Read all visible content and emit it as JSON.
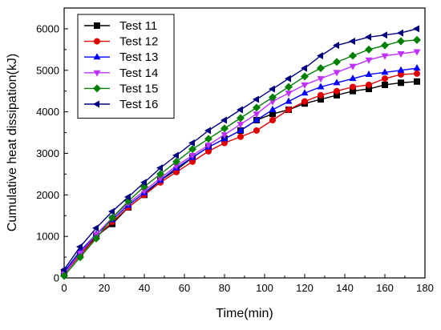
{
  "chart_data": {
    "type": "line",
    "title": "",
    "xlabel": "Time(min)",
    "ylabel": "Cumulative heat dissipation(kJ)",
    "xlim": [
      0,
      180
    ],
    "ylim": [
      0,
      6500
    ],
    "xticks": [
      0,
      20,
      40,
      60,
      80,
      100,
      120,
      140,
      160,
      180
    ],
    "yticks": [
      0,
      1000,
      2000,
      3000,
      4000,
      5000,
      6000
    ],
    "grid": false,
    "legend": "top-left",
    "x": [
      0,
      8,
      16,
      24,
      32,
      40,
      48,
      56,
      64,
      72,
      80,
      88,
      96,
      104,
      112,
      120,
      128,
      136,
      144,
      152,
      160,
      168,
      176
    ],
    "series": [
      {
        "name": "Test 11",
        "color": "#000000",
        "marker": "square",
        "values": [
          120,
          600,
          1000,
          1300,
          1700,
          2000,
          2350,
          2600,
          2900,
          3150,
          3350,
          3550,
          3800,
          3950,
          4050,
          4200,
          4300,
          4400,
          4500,
          4550,
          4650,
          4700,
          4730
        ]
      },
      {
        "name": "Test 12",
        "color": "#e00000",
        "marker": "circle",
        "values": [
          100,
          550,
          980,
          1350,
          1700,
          2000,
          2300,
          2550,
          2800,
          3050,
          3250,
          3400,
          3550,
          3800,
          4050,
          4250,
          4400,
          4500,
          4600,
          4650,
          4800,
          4900,
          4920
        ]
      },
      {
        "name": "Test 13",
        "color": "#0000ff",
        "marker": "triangle-up",
        "values": [
          150,
          650,
          1050,
          1400,
          1750,
          2050,
          2350,
          2650,
          2900,
          3150,
          3350,
          3550,
          3800,
          4050,
          4250,
          4450,
          4600,
          4700,
          4800,
          4900,
          4950,
          5000,
          5050
        ]
      },
      {
        "name": "Test 14",
        "color": "#c030ff",
        "marker": "triangle-down",
        "values": [
          100,
          600,
          1050,
          1450,
          1800,
          2100,
          2400,
          2700,
          2950,
          3200,
          3450,
          3700,
          3950,
          4250,
          4450,
          4650,
          4800,
          4950,
          5100,
          5250,
          5350,
          5400,
          5450
        ]
      },
      {
        "name": "Test 15",
        "color": "#008000",
        "marker": "diamond",
        "values": [
          50,
          500,
          950,
          1450,
          1850,
          2200,
          2500,
          2800,
          3100,
          3350,
          3600,
          3850,
          4100,
          4350,
          4600,
          4850,
          5050,
          5200,
          5350,
          5500,
          5600,
          5700,
          5730
        ]
      },
      {
        "name": "Test 16",
        "color": "#000080",
        "marker": "triangle-left",
        "values": [
          200,
          750,
          1200,
          1600,
          1950,
          2300,
          2650,
          2950,
          3250,
          3550,
          3800,
          4050,
          4300,
          4550,
          4800,
          5050,
          5350,
          5600,
          5700,
          5800,
          5850,
          5900,
          6000
        ]
      }
    ]
  }
}
